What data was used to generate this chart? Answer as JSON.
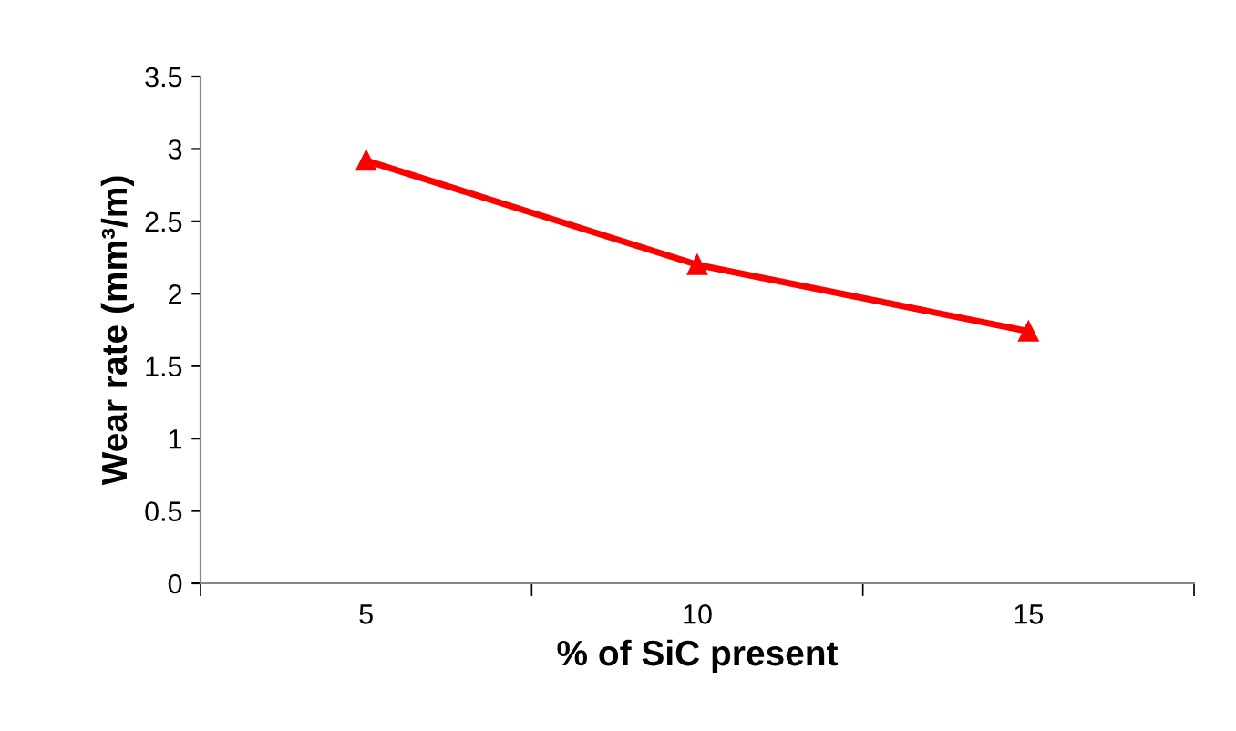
{
  "chart_data": {
    "type": "line",
    "xlabel": "% of SiC present",
    "ylabel": "Wear rate (mm³/m)",
    "categories": [
      "5",
      "10",
      "15"
    ],
    "series": [
      {
        "color": "#ff0000",
        "values": [
          2.92,
          2.2,
          1.74
        ]
      }
    ],
    "ylim": [
      0,
      3.5
    ],
    "yticks": [
      0,
      0.5,
      1,
      1.5,
      2,
      2.5,
      3,
      3.5
    ],
    "grid": false,
    "legend": false,
    "marker": "triangle",
    "line_style": "solid"
  }
}
